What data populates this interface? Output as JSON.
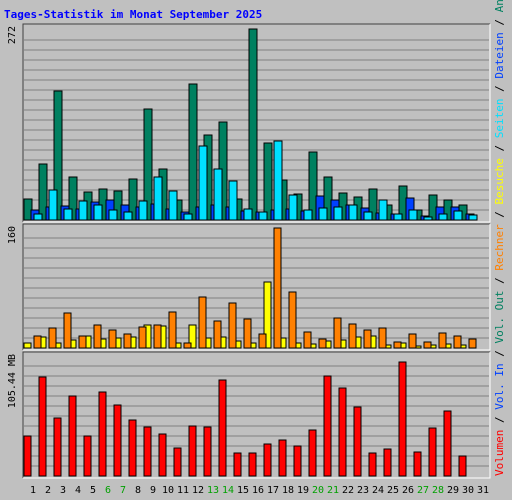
{
  "chart_data": {
    "type": "bar",
    "title": "Tages-Statistik im Monat September 2025",
    "days": [
      "1",
      "2",
      "3",
      "4",
      "5",
      "6",
      "7",
      "8",
      "9",
      "10",
      "11",
      "12",
      "13",
      "14",
      "15",
      "16",
      "17",
      "18",
      "19",
      "20",
      "21",
      "22",
      "23",
      "24",
      "25",
      "26",
      "27",
      "28",
      "29",
      "30",
      "31"
    ],
    "weekend_days": [
      "6",
      "7",
      "13",
      "14",
      "20",
      "21",
      "27",
      "28"
    ],
    "panels": [
      {
        "id": "top",
        "axis_label": "272",
        "ymax": 272,
        "series": [
          {
            "name": "Anfragen",
            "color": "#008060",
            "values": [
              30,
              80,
              183,
              61,
              40,
              44,
              41,
              58,
              158,
              73,
              28,
              193,
              121,
              140,
              30,
              272,
              109,
              57,
              37,
              97,
              61,
              39,
              33,
              44,
              21,
              49,
              14,
              36,
              29,
              21,
              null
            ]
          },
          {
            "name": "Dateien",
            "color": "#0040ff",
            "values": [
              14,
              18,
              20,
              16,
              25,
              28,
              21,
              19,
              23,
              16,
              11,
              19,
              21,
              18,
              13,
              12,
              14,
              16,
              13,
              34,
              28,
              21,
              17,
              10,
              9,
              32,
              6,
              18,
              19,
              8,
              null
            ]
          },
          {
            "name": "Seiten",
            "color": "#00e0ff",
            "values": [
              8,
              43,
              15,
              27,
              22,
              14,
              12,
              27,
              61,
              41,
              8,
              105,
              73,
              55,
              15,
              11,
              113,
              36,
              14,
              17,
              19,
              21,
              12,
              28,
              8,
              14,
              4,
              9,
              13,
              7,
              null
            ]
          },
          {
            "name": "Besuche",
            "color": "#ffff00",
            "values": [
              null,
              null,
              null,
              null,
              null,
              null,
              null,
              null,
              null,
              null,
              null,
              null,
              null,
              null,
              null,
              null,
              null,
              null,
              null,
              null,
              null,
              null,
              null,
              null,
              null,
              null,
              null,
              null,
              null,
              null,
              null
            ]
          }
        ]
      },
      {
        "id": "mid",
        "axis_label": "160",
        "ymax": 160,
        "series": [
          {
            "name": "Besuche",
            "color": "#ffff00",
            "values": [
              6,
              14,
              6,
              11,
              16,
              12,
              13,
              14,
              30,
              29,
              6,
              30,
              13,
              14,
              9,
              7,
              88,
              13,
              6,
              5,
              9,
              10,
              14,
              16,
              4,
              7,
              3,
              4,
              5,
              4,
              null
            ]
          },
          {
            "name": "Rechner",
            "color": "#ff8000",
            "values": [
              16,
              26,
              46,
              16,
              30,
              24,
              18,
              28,
              30,
              48,
              7,
              68,
              36,
              60,
              39,
              19,
              160,
              75,
              21,
              12,
              40,
              32,
              24,
              27,
              8,
              18,
              8,
              20,
              16,
              12,
              null
            ]
          }
        ]
      },
      {
        "id": "bot",
        "axis_label": "105.44 MB",
        "ymax": 105.44,
        "series": [
          {
            "name": "Volumen",
            "color": "#ff0000",
            "values": [
              35,
              87,
              51,
              70,
              35,
              74,
              62,
              49,
              43,
              37,
              25,
              44,
              43,
              84,
              20,
              20,
              28,
              32,
              26,
              40,
              88,
              77,
              61,
              20,
              24,
              100,
              21,
              42,
              57,
              18,
              null
            ]
          }
        ]
      }
    ],
    "right_legend": [
      {
        "text": "Anfragen",
        "color": "#008060"
      },
      {
        "text": "Dateien",
        "color": "#0040ff"
      },
      {
        "text": "Seiten",
        "color": "#00e0ff"
      },
      {
        "text": "Besuche",
        "color": "#ffff00"
      },
      {
        "text": "Rechner",
        "color": "#ff8000"
      },
      {
        "text": "Vol. Out",
        "color": "#008060"
      },
      {
        "text": "Vol. In",
        "color": "#0040ff"
      },
      {
        "text": "Volumen",
        "color": "#ff0000"
      }
    ],
    "legend_separator": " / ",
    "colors": {
      "background": "#c0c0c0",
      "title": "#0000ff",
      "weekday_label": "#000000",
      "weekend_label": "#00a000",
      "grid": "#808080"
    }
  }
}
